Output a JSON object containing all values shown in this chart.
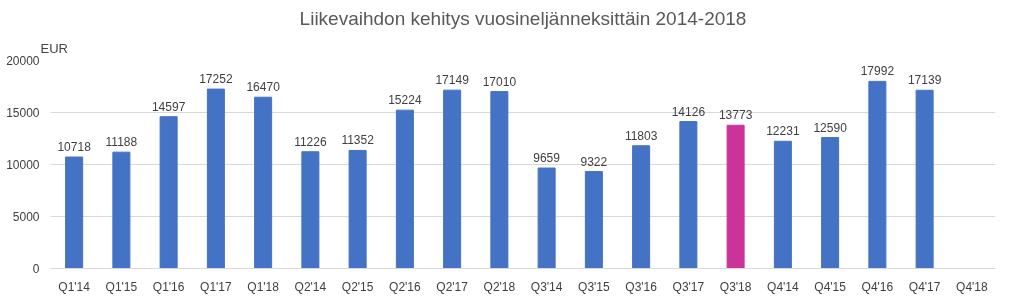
{
  "chart_data": {
    "type": "bar",
    "title": "Liikevaihdon kehitys vuosineljänneksittäin 2014-2018",
    "ylabel": "EUR",
    "categories": [
      "Q1'14",
      "Q1'15",
      "Q1'16",
      "Q1'17",
      "Q1'18",
      "Q2'14",
      "Q2'15",
      "Q2'16",
      "Q2'17",
      "Q2'18",
      "Q3'14",
      "Q3'15",
      "Q3'16",
      "Q3'17",
      "Q3'18",
      "Q4'14",
      "Q4'15",
      "Q4'16",
      "Q4'17",
      "Q4'18"
    ],
    "values": [
      10718,
      11188,
      14597,
      17252,
      16470,
      11226,
      11352,
      15224,
      17149,
      17010,
      9659,
      9322,
      11803,
      14126,
      13773,
      12231,
      12590,
      17992,
      17139,
      null
    ],
    "colors": [
      "#4472c4",
      "#4472c4",
      "#4472c4",
      "#4472c4",
      "#4472c4",
      "#4472c4",
      "#4472c4",
      "#4472c4",
      "#4472c4",
      "#4472c4",
      "#4472c4",
      "#4472c4",
      "#4472c4",
      "#4472c4",
      "#cc3399",
      "#4472c4",
      "#4472c4",
      "#4472c4",
      "#4472c4",
      "#4472c4"
    ],
    "ylim": [
      0,
      20000
    ],
    "yticks": [
      0,
      5000,
      10000,
      15000,
      20000
    ],
    "grid": "y",
    "data_labels": true
  }
}
